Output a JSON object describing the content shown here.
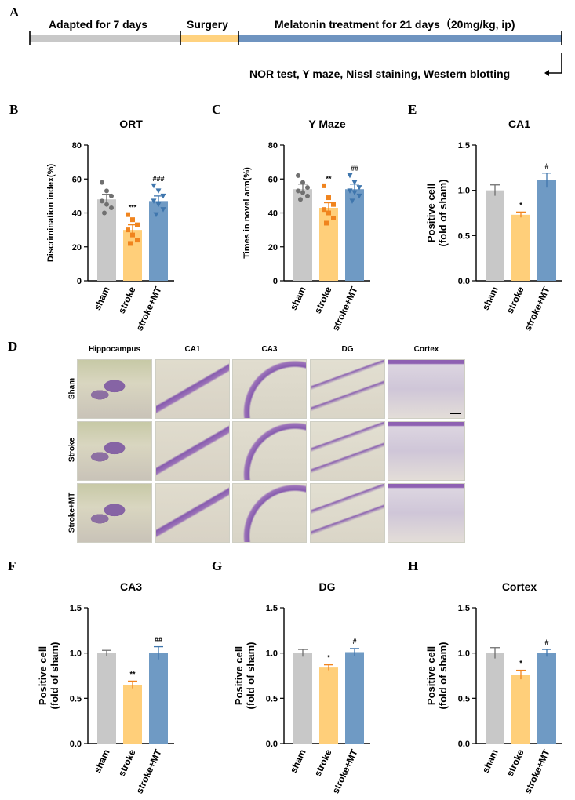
{
  "colors": {
    "sham": "#c8c8c8",
    "stroke": "#ffcf7a",
    "mt": "#6f9ac4",
    "sham_dot": "#707070",
    "stroke_dot": "#f0841e",
    "mt_dot": "#3f76ad",
    "timeline_gray": "#c8c8c8",
    "timeline_orange": "#ffd27f",
    "timeline_blue": "#6f94c0"
  },
  "panels": {
    "A": "A",
    "B": "B",
    "C": "C",
    "D": "D",
    "E": "E",
    "F": "F",
    "G": "G",
    "H": "H"
  },
  "timeline": {
    "adapted_label": "Adapted for 7 days",
    "surgery_label": "Surgery",
    "treatment_label": "Melatonin treatment for 21 days（20mg/kg, ip)",
    "tests_label": "NOR test, Y maze, Nissl staining, Western blotting"
  },
  "micrographs": {
    "columns": [
      "Hippocampus",
      "CA1",
      "CA3",
      "DG",
      "Cortex"
    ],
    "rows": [
      "Sham",
      "Stroke",
      "Stroke+MT"
    ]
  },
  "chart_data": [
    {
      "id": "B",
      "type": "bar",
      "title": "ORT",
      "ylabel": "Discrimination index(%)",
      "categories": [
        "sham",
        "stroke",
        "stroke+MT"
      ],
      "values": [
        48,
        30,
        47
      ],
      "errors": [
        3,
        3,
        3
      ],
      "ylim": [
        0,
        80
      ],
      "yticks": [
        "0",
        "20",
        "40",
        "60",
        "80"
      ],
      "annotations": [
        "",
        "***",
        "###"
      ],
      "points": [
        [
          58,
          53,
          50,
          47,
          45,
          43,
          40
        ],
        [
          39,
          36,
          33,
          30,
          27,
          24,
          22
        ],
        [
          56,
          53,
          50,
          47,
          45,
          42,
          39
        ]
      ]
    },
    {
      "id": "C",
      "type": "bar",
      "title": "Y Maze",
      "ylabel": "Times in novel arm(%)",
      "categories": [
        "sham",
        "stroke",
        "stroke+MT"
      ],
      "values": [
        54,
        43,
        54
      ],
      "errors": [
        3,
        3,
        3
      ],
      "ylim": [
        0,
        80
      ],
      "yticks": [
        "0",
        "20",
        "40",
        "60",
        "80"
      ],
      "annotations": [
        "",
        "**",
        "##"
      ],
      "points": [
        [
          62,
          58,
          55,
          53,
          52,
          50,
          48
        ],
        [
          56,
          49,
          45,
          42,
          40,
          37,
          34
        ],
        [
          62,
          58,
          55,
          53,
          52,
          50,
          47
        ]
      ]
    },
    {
      "id": "E",
      "type": "bar",
      "title": "CA1",
      "ylabel": "Positive cell\n(fold of sham)",
      "categories": [
        "sham",
        "stroke",
        "stroke+MT"
      ],
      "values": [
        1.0,
        0.73,
        1.11
      ],
      "errors": [
        0.06,
        0.03,
        0.08
      ],
      "ylim": [
        0,
        1.5
      ],
      "yticks": [
        "0.0",
        "0.5",
        "1.0",
        "1.5"
      ],
      "annotations": [
        "",
        "*",
        "#"
      ]
    },
    {
      "id": "F",
      "type": "bar",
      "title": "CA3",
      "ylabel": "Positive cell\n(fold of sham)",
      "categories": [
        "sham",
        "stroke",
        "stroke+MT"
      ],
      "values": [
        1.0,
        0.65,
        1.0
      ],
      "errors": [
        0.03,
        0.04,
        0.07
      ],
      "ylim": [
        0,
        1.5
      ],
      "yticks": [
        "0.0",
        "0.5",
        "1.0",
        "1.5"
      ],
      "annotations": [
        "",
        "**",
        "##"
      ]
    },
    {
      "id": "G",
      "type": "bar",
      "title": "DG",
      "ylabel": "Positive cell\n(fold of sham)",
      "categories": [
        "sham",
        "stroke",
        "stroke+MT"
      ],
      "values": [
        1.0,
        0.84,
        1.01
      ],
      "errors": [
        0.04,
        0.03,
        0.04
      ],
      "ylim": [
        0,
        1.5
      ],
      "yticks": [
        "0.0",
        "0.5",
        "1.0",
        "1.5"
      ],
      "annotations": [
        "",
        "*",
        "#"
      ]
    },
    {
      "id": "H",
      "type": "bar",
      "title": "Cortex",
      "ylabel": "Positive cell\n(fold of sham)",
      "categories": [
        "sham",
        "stroke",
        "stroke+MT"
      ],
      "values": [
        1.0,
        0.76,
        1.0
      ],
      "errors": [
        0.06,
        0.05,
        0.04
      ],
      "ylim": [
        0,
        1.5
      ],
      "yticks": [
        "0.0",
        "0.5",
        "1.0",
        "1.5"
      ],
      "annotations": [
        "",
        "*",
        "#"
      ]
    }
  ]
}
